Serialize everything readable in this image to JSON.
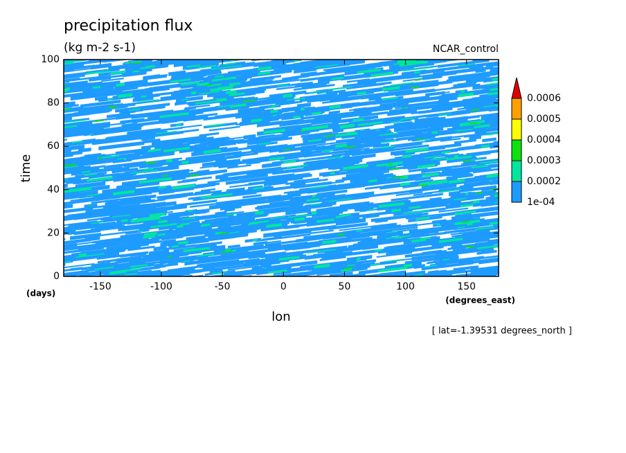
{
  "chart_data": {
    "type": "contour",
    "title": "precipitation flux",
    "units": "(kg m-2 s-1)",
    "subtitle": "NCAR_control",
    "xlabel": "lon",
    "ylabel": "time",
    "x_unit": "(degrees_east)",
    "y_unit": "(days)",
    "footnote": "[ lat=-1.39531 degrees_north ]",
    "xlim": [
      -180,
      176.25
    ],
    "ylim": [
      0,
      100
    ],
    "xticks": [
      -150,
      -100,
      -50,
      0,
      50,
      100,
      150
    ],
    "yticks": [
      0,
      20,
      40,
      60,
      80,
      100
    ],
    "levels": [
      {
        "value": 0.0001,
        "label": "1e-04"
      },
      0.0002,
      0.0003,
      0.0004,
      0.0005,
      0.0006
    ],
    "colors": [
      "#1e9bff",
      "#00e6a0",
      "#10e010",
      "#ffff00",
      "#ffa000",
      "#e00000"
    ]
  }
}
